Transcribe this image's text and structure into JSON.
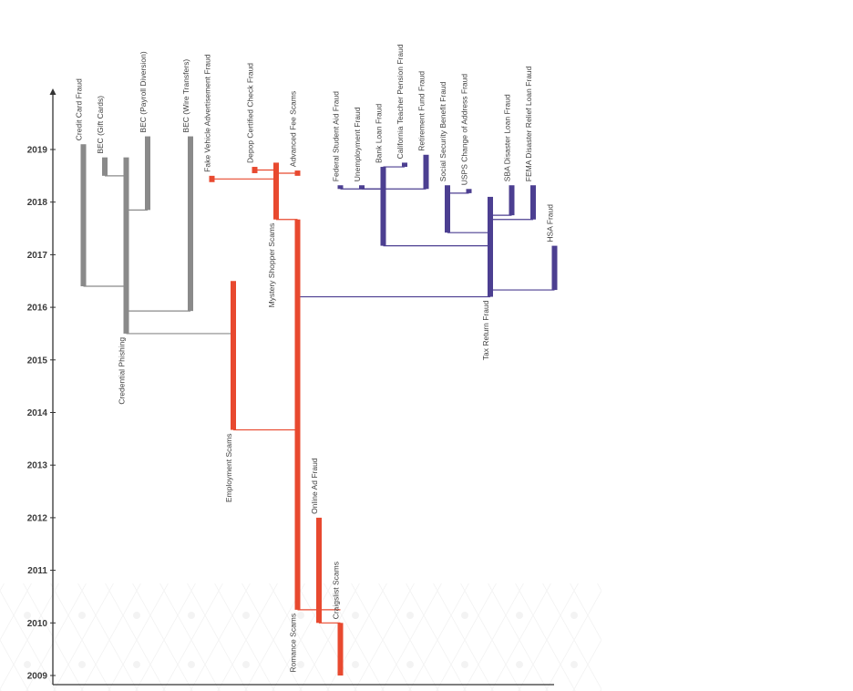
{
  "chart_data": {
    "type": "phylogeny-timeline",
    "title": "",
    "xlabel": "",
    "ylabel": "",
    "ylim": [
      2009,
      2019.9
    ],
    "y_ticks": [
      2009,
      2010,
      2011,
      2012,
      2013,
      2014,
      2015,
      2016,
      2017,
      2018,
      2019
    ],
    "groups": [
      {
        "name": "gray",
        "color": "#8a8a8a"
      },
      {
        "name": "red",
        "color": "#e8492f"
      },
      {
        "name": "purple",
        "color": "#4c3f91"
      }
    ],
    "nodes": [
      {
        "id": "credit-card-fraud",
        "label": "Credit Card Fraud",
        "group": "gray",
        "col": 1,
        "start": 2016.4,
        "end": 2019.1,
        "parent": "credential-phishing",
        "join": 2016.4
      },
      {
        "id": "bec-gift-cards",
        "label": "BEC (Gift Cards)",
        "group": "gray",
        "col": 2,
        "start": 2018.5,
        "end": 2018.85,
        "parent": "credential-phishing",
        "join": 2018.5
      },
      {
        "id": "credential-phishing",
        "label": "Credential Phishing",
        "group": "gray",
        "col": 3,
        "start": 2015.5,
        "end": 2018.85,
        "parent": "employment-scams",
        "join": 2015.5,
        "label_pos": "bottom"
      },
      {
        "id": "bec-payroll",
        "label": "BEC (Payroll Diversion)",
        "group": "gray",
        "col": 4,
        "start": 2017.85,
        "end": 2019.25,
        "parent": "credential-phishing",
        "join": 2017.85
      },
      {
        "id": "bec-wire",
        "label": "BEC (Wire Transfers)",
        "group": "gray",
        "col": 6,
        "start": 2015.93,
        "end": 2019.25,
        "parent": "credential-phishing",
        "join": 2015.93
      },
      {
        "id": "fake-vehicle-ad",
        "label": "Fake Vehicle Advertisement Fraud",
        "group": "red",
        "col": 7,
        "start": 2018.38,
        "end": 2018.5,
        "parent": "mystery-shopper",
        "join": 2018.44
      },
      {
        "id": "employment-scams",
        "label": "Employment Scams",
        "group": "red",
        "col": 8,
        "start": 2013.67,
        "end": 2016.5,
        "parent": "romance-scams",
        "join": 2013.67,
        "label_pos": "bottom"
      },
      {
        "id": "depop-check",
        "label": "Depop Certified Check Fraud",
        "group": "red",
        "col": 9,
        "start": 2018.55,
        "end": 2018.67,
        "parent": "mystery-shopper",
        "join": 2018.61
      },
      {
        "id": "mystery-shopper",
        "label": "Mystery Shopper Scams",
        "group": "red",
        "col": 10,
        "start": 2017.67,
        "end": 2018.75,
        "parent": "romance-scams",
        "join": 2017.67,
        "label_pos": "bottom"
      },
      {
        "id": "advanced-fee",
        "label": "Advanced Fee Scams",
        "group": "red",
        "col": 11,
        "start": 2018.5,
        "end": 2018.6,
        "parent": "mystery-shopper",
        "join": 2018.55
      },
      {
        "id": "romance-scams",
        "label": "Romance Scams",
        "group": "red",
        "col": 11,
        "start": 2010.25,
        "end": 2017.67,
        "parent": "craigslist-scams",
        "join": 2010.25,
        "label_pos": "bottom"
      },
      {
        "id": "online-ad-fraud",
        "label": "Online Ad Fraud",
        "group": "red",
        "col": 12,
        "start": 2010.0,
        "end": 2012.0,
        "parent": "craigslist-scams",
        "join": 2010.0
      },
      {
        "id": "craigslist-scams",
        "label": "Craigslist Scams",
        "group": "red",
        "col": 13,
        "start": 2009.0,
        "end": 2010.0,
        "parent": null,
        "join": null
      },
      {
        "id": "federal-student-aid",
        "label": "Federal Student Aid Fraud",
        "group": "purple",
        "col": 13,
        "start": 2018.25,
        "end": 2018.32,
        "parent": "bank-loan",
        "join": 2018.25
      },
      {
        "id": "unemployment-fraud",
        "label": "Unemployment Fraud",
        "group": "purple",
        "col": 14,
        "start": 2018.25,
        "end": 2018.32,
        "parent": "bank-loan",
        "join": 2018.25
      },
      {
        "id": "bank-loan",
        "label": "Bank Loan Fraud",
        "group": "purple",
        "col": 15,
        "start": 2017.17,
        "end": 2018.67,
        "parent": "tax-return",
        "join": 2017.17
      },
      {
        "id": "california-teacher",
        "label": "California Teacher Pension Fraud",
        "group": "purple",
        "col": 16,
        "start": 2018.67,
        "end": 2018.75,
        "parent": "bank-loan",
        "join": 2018.67
      },
      {
        "id": "retirement-fund",
        "label": "Retirement Fund Fraud",
        "group": "purple",
        "col": 17,
        "start": 2018.25,
        "end": 2018.9,
        "parent": "bank-loan",
        "join": 2018.25
      },
      {
        "id": "social-security",
        "label": "Social Security Benefit Fraud",
        "group": "purple",
        "col": 18,
        "start": 2017.42,
        "end": 2018.32,
        "parent": "tax-return",
        "join": 2017.42
      },
      {
        "id": "usps-address",
        "label": "USPS Change of Address Fraud",
        "group": "purple",
        "col": 19,
        "start": 2018.17,
        "end": 2018.25,
        "parent": "social-security",
        "join": 2018.17
      },
      {
        "id": "tax-return",
        "label": "Tax Return Fraud",
        "group": "purple",
        "col": 20,
        "start": 2016.2,
        "end": 2018.1,
        "parent": "romance-scams",
        "join": 2016.2,
        "label_pos": "bottom"
      },
      {
        "id": "sba-disaster",
        "label": "SBA Disaster Loan Fraud",
        "group": "purple",
        "col": 21,
        "start": 2017.75,
        "end": 2018.32,
        "parent": "tax-return",
        "join": 2017.75
      },
      {
        "id": "fema-disaster",
        "label": "FEMA Disaster Relief Loan Fraud",
        "group": "purple",
        "col": 22,
        "start": 2017.67,
        "end": 2018.32,
        "parent": "tax-return",
        "join": 2017.67
      },
      {
        "id": "hsa-fraud",
        "label": "HSA Fraud",
        "group": "purple",
        "col": 23,
        "start": 2016.33,
        "end": 2017.17,
        "parent": "tax-return",
        "join": 2016.33
      }
    ]
  }
}
